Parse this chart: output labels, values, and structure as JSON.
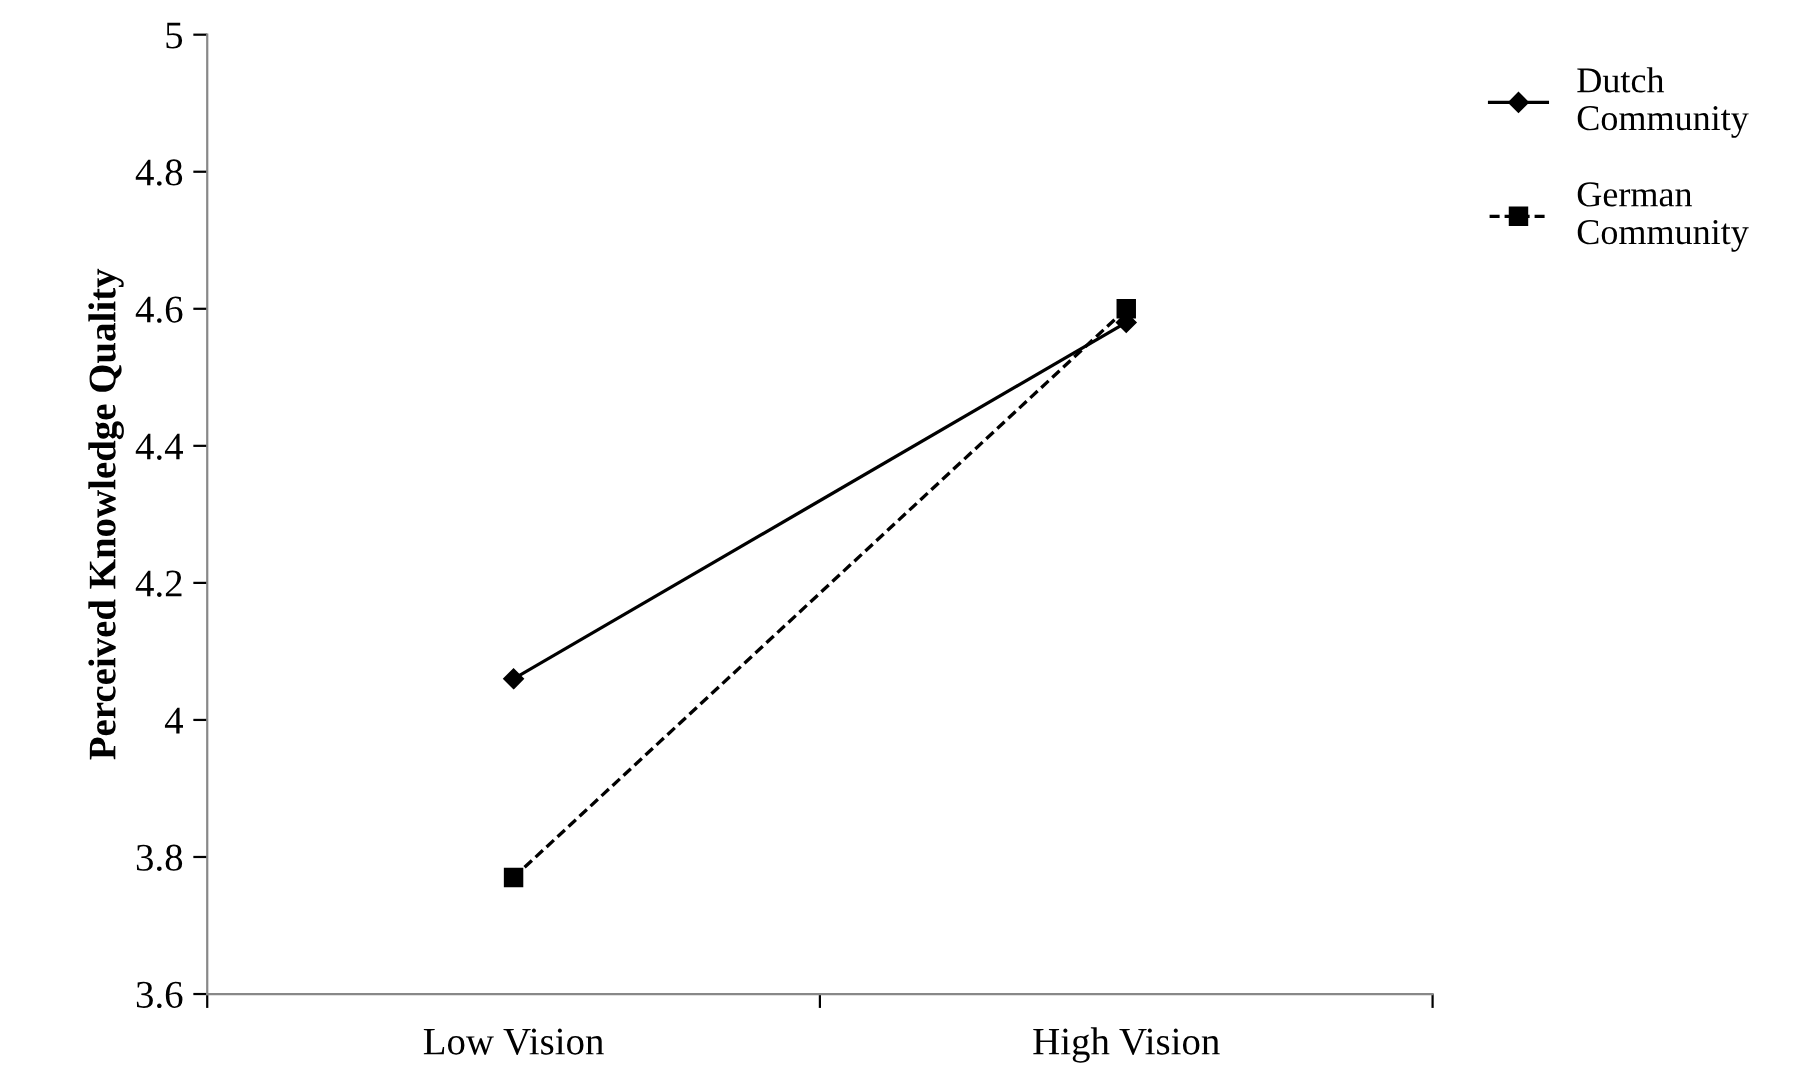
{
  "chart_data": {
    "type": "line",
    "ylabel": "Perceived Knowledge Quality",
    "categories": [
      "Low Vision",
      "High Vision"
    ],
    "series": [
      {
        "name": "Dutch\nCommunity",
        "color": "#000000",
        "values": [
          4.06,
          4.58
        ],
        "marker": "diamond",
        "line_style": "solid"
      },
      {
        "name": "German\nCommunity",
        "color": "#000000",
        "values": [
          3.77,
          4.6
        ],
        "marker": "square",
        "line_style": "dashed"
      }
    ],
    "ylim": [
      3.6,
      5
    ],
    "yticks": [
      3.6,
      3.8,
      4,
      4.2,
      4.4,
      4.6,
      4.8,
      5
    ],
    "grid": false,
    "legend": "top right"
  }
}
